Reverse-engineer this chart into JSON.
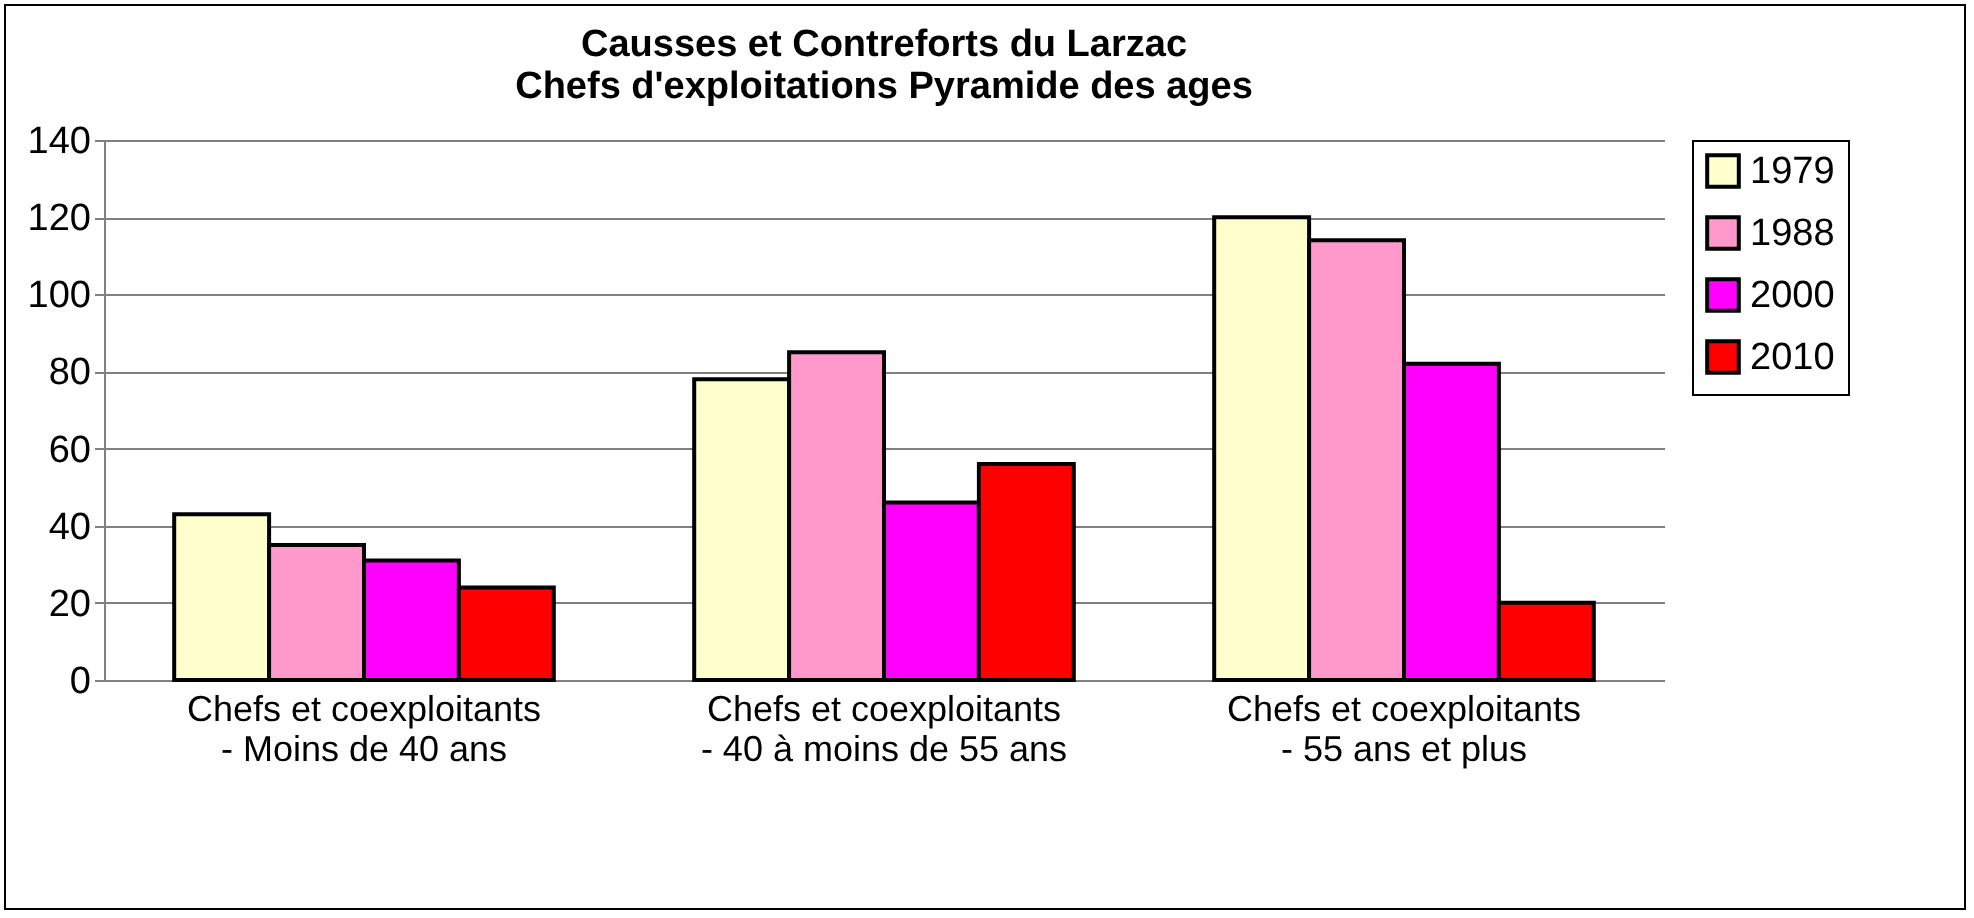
{
  "chart_data": {
    "type": "bar",
    "title": "Causses et Contreforts du Larzac\nChefs d'exploitations Pyramide des ages",
    "categories": [
      "Chefs et coexploitants - Moins de 40 ans",
      "Chefs et coexploitants - 40 à moins de 55 ans",
      "Chefs et coexploitants - 55 ans et plus"
    ],
    "series": [
      {
        "name": "1979",
        "color": "#ffffcc",
        "values": [
          43,
          78,
          120
        ]
      },
      {
        "name": "1988",
        "color": "#ff99cc",
        "values": [
          35,
          85,
          114
        ]
      },
      {
        "name": "2000",
        "color": "#ff00ff",
        "values": [
          31,
          46,
          82
        ]
      },
      {
        "name": "2010",
        "color": "#ff0000",
        "values": [
          24,
          56,
          20
        ]
      }
    ],
    "ylim": [
      0,
      140
    ],
    "yticks": [
      0,
      20,
      40,
      60,
      80,
      100,
      120,
      140
    ],
    "grid": "y",
    "legend": "right"
  }
}
